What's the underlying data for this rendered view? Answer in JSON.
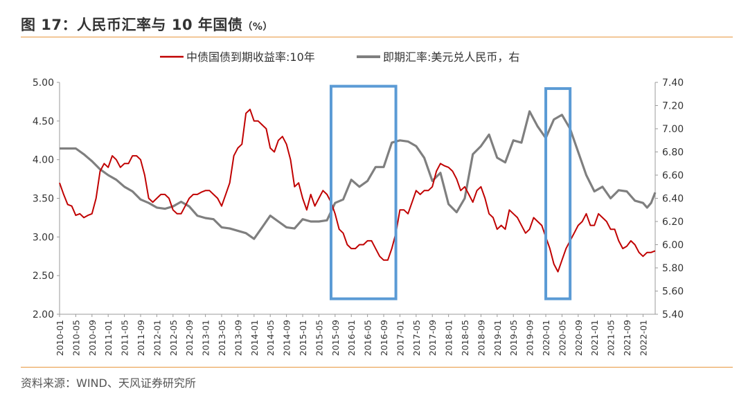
{
  "header": {
    "title": "图 17：人民币汇率与 10 年国债",
    "title_unit": "（%）"
  },
  "footer": {
    "source": "资料来源：WIND、天风证券研究所"
  },
  "chart_data": {
    "type": "line",
    "title": "图 17：人民币汇率与 10 年国债（%）",
    "legend_position": "top-center",
    "grid": false,
    "x_tick_labels": [
      "2010-01",
      "2010-05",
      "2010-09",
      "2011-01",
      "2011-05",
      "2011-09",
      "2012-01",
      "2012-05",
      "2012-09",
      "2013-01",
      "2013-05",
      "2013-09",
      "2014-01",
      "2014-05",
      "2014-09",
      "2015-01",
      "2015-05",
      "2015-09",
      "2016-01",
      "2016-05",
      "2016-09",
      "2017-01",
      "2017-05",
      "2017-09",
      "2018-01",
      "2018-05",
      "2018-09",
      "2019-01",
      "2019-05",
      "2019-09",
      "2020-01",
      "2020-05",
      "2020-09",
      "2021-01",
      "2021-05",
      "2021-09",
      "2022-01"
    ],
    "x_range": [
      "2010-01",
      "2022-04"
    ],
    "y_left": {
      "range": [
        2.0,
        5.0
      ],
      "ticks": [
        "2.00",
        "2.50",
        "3.00",
        "3.50",
        "4.00",
        "4.50",
        "5.00"
      ]
    },
    "y_right": {
      "range": [
        5.4,
        7.4
      ],
      "ticks": [
        "5.40",
        "5.60",
        "5.80",
        "6.00",
        "6.20",
        "6.40",
        "6.60",
        "6.80",
        "7.00",
        "7.20",
        "7.40"
      ]
    },
    "colors": {
      "yield": "#c00000",
      "fx": "#7f7f7f",
      "highlight": "#5b9bd5",
      "rule": "#e8963d"
    },
    "series": [
      {
        "name": "中债国债到期收益率:10年",
        "axis": "left",
        "color": "#c00000",
        "points": [
          [
            "2010-01",
            3.7
          ],
          [
            "2010-02",
            3.55
          ],
          [
            "2010-03",
            3.42
          ],
          [
            "2010-04",
            3.4
          ],
          [
            "2010-05",
            3.28
          ],
          [
            "2010-06",
            3.3
          ],
          [
            "2010-07",
            3.25
          ],
          [
            "2010-08",
            3.28
          ],
          [
            "2010-09",
            3.3
          ],
          [
            "2010-10",
            3.5
          ],
          [
            "2010-11",
            3.85
          ],
          [
            "2010-12",
            3.95
          ],
          [
            "2011-01",
            3.9
          ],
          [
            "2011-02",
            4.05
          ],
          [
            "2011-03",
            4.0
          ],
          [
            "2011-04",
            3.9
          ],
          [
            "2011-05",
            3.95
          ],
          [
            "2011-06",
            3.95
          ],
          [
            "2011-07",
            4.05
          ],
          [
            "2011-08",
            4.05
          ],
          [
            "2011-09",
            4.0
          ],
          [
            "2011-10",
            3.8
          ],
          [
            "2011-11",
            3.5
          ],
          [
            "2011-12",
            3.45
          ],
          [
            "2012-01",
            3.5
          ],
          [
            "2012-02",
            3.55
          ],
          [
            "2012-03",
            3.55
          ],
          [
            "2012-04",
            3.5
          ],
          [
            "2012-05",
            3.35
          ],
          [
            "2012-06",
            3.3
          ],
          [
            "2012-07",
            3.3
          ],
          [
            "2012-08",
            3.4
          ],
          [
            "2012-09",
            3.5
          ],
          [
            "2012-10",
            3.55
          ],
          [
            "2012-11",
            3.55
          ],
          [
            "2012-12",
            3.58
          ],
          [
            "2013-01",
            3.6
          ],
          [
            "2013-02",
            3.6
          ],
          [
            "2013-03",
            3.55
          ],
          [
            "2013-04",
            3.5
          ],
          [
            "2013-05",
            3.4
          ],
          [
            "2013-06",
            3.55
          ],
          [
            "2013-07",
            3.7
          ],
          [
            "2013-08",
            4.05
          ],
          [
            "2013-09",
            4.15
          ],
          [
            "2013-10",
            4.2
          ],
          [
            "2013-11",
            4.6
          ],
          [
            "2013-12",
            4.65
          ],
          [
            "2014-01",
            4.5
          ],
          [
            "2014-02",
            4.5
          ],
          [
            "2014-03",
            4.45
          ],
          [
            "2014-04",
            4.4
          ],
          [
            "2014-05",
            4.15
          ],
          [
            "2014-06",
            4.1
          ],
          [
            "2014-07",
            4.25
          ],
          [
            "2014-08",
            4.3
          ],
          [
            "2014-09",
            4.2
          ],
          [
            "2014-10",
            4.0
          ],
          [
            "2014-11",
            3.65
          ],
          [
            "2014-12",
            3.7
          ],
          [
            "2015-01",
            3.5
          ],
          [
            "2015-02",
            3.35
          ],
          [
            "2015-03",
            3.55
          ],
          [
            "2015-04",
            3.4
          ],
          [
            "2015-05",
            3.5
          ],
          [
            "2015-06",
            3.6
          ],
          [
            "2015-07",
            3.55
          ],
          [
            "2015-08",
            3.45
          ],
          [
            "2015-09",
            3.3
          ],
          [
            "2015-10",
            3.1
          ],
          [
            "2015-11",
            3.05
          ],
          [
            "2015-12",
            2.9
          ],
          [
            "2016-01",
            2.85
          ],
          [
            "2016-02",
            2.85
          ],
          [
            "2016-03",
            2.9
          ],
          [
            "2016-04",
            2.9
          ],
          [
            "2016-05",
            2.95
          ],
          [
            "2016-06",
            2.95
          ],
          [
            "2016-07",
            2.85
          ],
          [
            "2016-08",
            2.75
          ],
          [
            "2016-09",
            2.7
          ],
          [
            "2016-10",
            2.7
          ],
          [
            "2016-11",
            2.85
          ],
          [
            "2016-12",
            3.05
          ],
          [
            "2017-01",
            3.35
          ],
          [
            "2017-02",
            3.35
          ],
          [
            "2017-03",
            3.3
          ],
          [
            "2017-04",
            3.45
          ],
          [
            "2017-05",
            3.6
          ],
          [
            "2017-06",
            3.55
          ],
          [
            "2017-07",
            3.6
          ],
          [
            "2017-08",
            3.6
          ],
          [
            "2017-09",
            3.65
          ],
          [
            "2017-10",
            3.85
          ],
          [
            "2017-11",
            3.95
          ],
          [
            "2017-12",
            3.92
          ],
          [
            "2018-01",
            3.9
          ],
          [
            "2018-02",
            3.85
          ],
          [
            "2018-03",
            3.75
          ],
          [
            "2018-04",
            3.6
          ],
          [
            "2018-05",
            3.65
          ],
          [
            "2018-06",
            3.55
          ],
          [
            "2018-07",
            3.45
          ],
          [
            "2018-08",
            3.6
          ],
          [
            "2018-09",
            3.65
          ],
          [
            "2018-10",
            3.5
          ],
          [
            "2018-11",
            3.3
          ],
          [
            "2018-12",
            3.25
          ],
          [
            "2019-01",
            3.1
          ],
          [
            "2019-02",
            3.15
          ],
          [
            "2019-03",
            3.1
          ],
          [
            "2019-04",
            3.35
          ],
          [
            "2019-05",
            3.3
          ],
          [
            "2019-06",
            3.25
          ],
          [
            "2019-07",
            3.15
          ],
          [
            "2019-08",
            3.05
          ],
          [
            "2019-09",
            3.1
          ],
          [
            "2019-10",
            3.25
          ],
          [
            "2019-11",
            3.2
          ],
          [
            "2019-12",
            3.15
          ],
          [
            "2020-01",
            3.0
          ],
          [
            "2020-02",
            2.85
          ],
          [
            "2020-03",
            2.65
          ],
          [
            "2020-04",
            2.55
          ],
          [
            "2020-05",
            2.7
          ],
          [
            "2020-06",
            2.85
          ],
          [
            "2020-07",
            2.95
          ],
          [
            "2020-08",
            3.05
          ],
          [
            "2020-09",
            3.15
          ],
          [
            "2020-10",
            3.2
          ],
          [
            "2020-11",
            3.3
          ],
          [
            "2020-12",
            3.15
          ],
          [
            "2021-01",
            3.15
          ],
          [
            "2021-02",
            3.3
          ],
          [
            "2021-03",
            3.25
          ],
          [
            "2021-04",
            3.2
          ],
          [
            "2021-05",
            3.1
          ],
          [
            "2021-06",
            3.1
          ],
          [
            "2021-07",
            2.95
          ],
          [
            "2021-08",
            2.85
          ],
          [
            "2021-09",
            2.88
          ],
          [
            "2021-10",
            2.95
          ],
          [
            "2021-11",
            2.9
          ],
          [
            "2021-12",
            2.8
          ],
          [
            "2022-01",
            2.75
          ],
          [
            "2022-02",
            2.8
          ],
          [
            "2022-03",
            2.8
          ],
          [
            "2022-04",
            2.82
          ]
        ]
      },
      {
        "name": "即期汇率:美元兑人民币，右",
        "axis": "right",
        "color": "#7f7f7f",
        "points": [
          [
            "2010-01",
            6.83
          ],
          [
            "2010-03",
            6.83
          ],
          [
            "2010-05",
            6.83
          ],
          [
            "2010-07",
            6.78
          ],
          [
            "2010-09",
            6.72
          ],
          [
            "2010-11",
            6.65
          ],
          [
            "2011-01",
            6.6
          ],
          [
            "2011-03",
            6.56
          ],
          [
            "2011-05",
            6.5
          ],
          [
            "2011-07",
            6.46
          ],
          [
            "2011-09",
            6.39
          ],
          [
            "2011-11",
            6.36
          ],
          [
            "2012-01",
            6.32
          ],
          [
            "2012-03",
            6.31
          ],
          [
            "2012-05",
            6.33
          ],
          [
            "2012-07",
            6.37
          ],
          [
            "2012-09",
            6.33
          ],
          [
            "2012-11",
            6.25
          ],
          [
            "2013-01",
            6.23
          ],
          [
            "2013-03",
            6.22
          ],
          [
            "2013-05",
            6.15
          ],
          [
            "2013-07",
            6.14
          ],
          [
            "2013-09",
            6.12
          ],
          [
            "2013-11",
            6.1
          ],
          [
            "2014-01",
            6.05
          ],
          [
            "2014-03",
            6.15
          ],
          [
            "2014-05",
            6.25
          ],
          [
            "2014-07",
            6.2
          ],
          [
            "2014-09",
            6.15
          ],
          [
            "2014-11",
            6.14
          ],
          [
            "2015-01",
            6.22
          ],
          [
            "2015-03",
            6.2
          ],
          [
            "2015-05",
            6.2
          ],
          [
            "2015-07",
            6.21
          ],
          [
            "2015-09",
            6.36
          ],
          [
            "2015-11",
            6.39
          ],
          [
            "2016-01",
            6.56
          ],
          [
            "2016-03",
            6.5
          ],
          [
            "2016-05",
            6.55
          ],
          [
            "2016-07",
            6.67
          ],
          [
            "2016-09",
            6.67
          ],
          [
            "2016-11",
            6.88
          ],
          [
            "2017-01",
            6.9
          ],
          [
            "2017-03",
            6.89
          ],
          [
            "2017-05",
            6.85
          ],
          [
            "2017-07",
            6.75
          ],
          [
            "2017-09",
            6.55
          ],
          [
            "2017-11",
            6.62
          ],
          [
            "2018-01",
            6.35
          ],
          [
            "2018-03",
            6.28
          ],
          [
            "2018-05",
            6.4
          ],
          [
            "2018-07",
            6.78
          ],
          [
            "2018-09",
            6.85
          ],
          [
            "2018-11",
            6.95
          ],
          [
            "2019-01",
            6.75
          ],
          [
            "2019-03",
            6.71
          ],
          [
            "2019-05",
            6.9
          ],
          [
            "2019-07",
            6.88
          ],
          [
            "2019-09",
            7.15
          ],
          [
            "2019-11",
            7.02
          ],
          [
            "2020-01",
            6.92
          ],
          [
            "2020-03",
            7.08
          ],
          [
            "2020-05",
            7.12
          ],
          [
            "2020-07",
            7.0
          ],
          [
            "2020-09",
            6.8
          ],
          [
            "2020-11",
            6.6
          ],
          [
            "2021-01",
            6.46
          ],
          [
            "2021-03",
            6.5
          ],
          [
            "2021-05",
            6.4
          ],
          [
            "2021-07",
            6.47
          ],
          [
            "2021-09",
            6.46
          ],
          [
            "2021-11",
            6.38
          ],
          [
            "2022-01",
            6.36
          ],
          [
            "2022-02",
            6.32
          ],
          [
            "2022-03",
            6.36
          ],
          [
            "2022-04",
            6.45
          ]
        ]
      }
    ],
    "highlights": [
      {
        "from": "2015-08",
        "to": "2016-12",
        "y_left": [
          2.2,
          4.95
        ]
      },
      {
        "from": "2020-01",
        "to": "2020-07",
        "y_left": [
          2.2,
          4.92
        ]
      }
    ]
  }
}
